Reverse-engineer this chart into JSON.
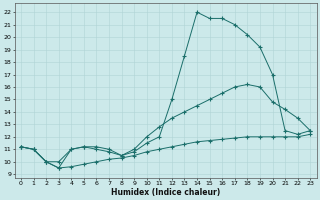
{
  "xlabel": "Humidex (Indice chaleur)",
  "xlim": [
    -0.5,
    23.5
  ],
  "ylim": [
    8.7,
    22.7
  ],
  "xticks": [
    0,
    1,
    2,
    3,
    4,
    5,
    6,
    7,
    8,
    9,
    10,
    11,
    12,
    13,
    14,
    15,
    16,
    17,
    18,
    19,
    20,
    21,
    22,
    23
  ],
  "yticks": [
    9,
    10,
    11,
    12,
    13,
    14,
    15,
    16,
    17,
    18,
    19,
    20,
    21,
    22
  ],
  "bg_color": "#cce9ea",
  "grid_color": "#b0d4d6",
  "line_color": "#1a6e6a",
  "line1_x": [
    0,
    1,
    2,
    3,
    4,
    5,
    6,
    7,
    8,
    9,
    10,
    11,
    12,
    13,
    14,
    15,
    16,
    17,
    18,
    19,
    20,
    21,
    22,
    23
  ],
  "line1_y": [
    11.2,
    11.0,
    10.0,
    9.5,
    11.0,
    11.2,
    11.0,
    10.8,
    10.5,
    10.8,
    11.5,
    12.0,
    15.0,
    18.5,
    22.0,
    21.5,
    21.5,
    21.0,
    20.2,
    19.2,
    17.0,
    12.5,
    12.2,
    12.5
  ],
  "line2_x": [
    0,
    1,
    2,
    3,
    4,
    5,
    6,
    7,
    8,
    9,
    10,
    11,
    12,
    13,
    14,
    15,
    16,
    17,
    18,
    19,
    20,
    21,
    22,
    23
  ],
  "line2_y": [
    11.2,
    11.0,
    10.0,
    10.0,
    11.0,
    11.2,
    11.2,
    11.0,
    10.5,
    11.0,
    12.0,
    12.8,
    13.5,
    14.0,
    14.5,
    15.0,
    15.5,
    16.0,
    16.2,
    16.0,
    14.8,
    14.2,
    13.5,
    12.5
  ],
  "line3_x": [
    0,
    1,
    2,
    3,
    4,
    5,
    6,
    7,
    8,
    9,
    10,
    11,
    12,
    13,
    14,
    15,
    16,
    17,
    18,
    19,
    20,
    21,
    22,
    23
  ],
  "line3_y": [
    11.2,
    11.0,
    10.0,
    9.5,
    9.6,
    9.8,
    10.0,
    10.2,
    10.3,
    10.5,
    10.8,
    11.0,
    11.2,
    11.4,
    11.6,
    11.7,
    11.8,
    11.9,
    12.0,
    12.0,
    12.0,
    12.0,
    12.0,
    12.2
  ]
}
